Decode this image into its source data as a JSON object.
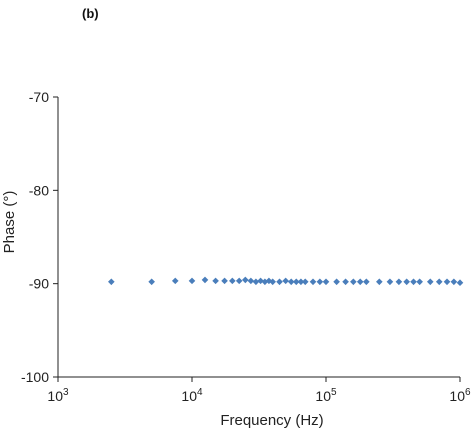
{
  "panel_label": "(b)",
  "chart_data": {
    "type": "scatter",
    "xlabel": "Frequency (Hz)",
    "ylabel": "Phase (°)",
    "xscale": "log",
    "xlim": [
      1000,
      1000000
    ],
    "ylim": [
      -100,
      -70
    ],
    "x_ticks": [
      1000,
      10000,
      100000,
      1000000
    ],
    "x_tick_labels": [
      {
        "base": "10",
        "exp": "3"
      },
      {
        "base": "10",
        "exp": "4"
      },
      {
        "base": "10",
        "exp": "5"
      },
      {
        "base": "10",
        "exp": "6"
      }
    ],
    "y_ticks": [
      -100,
      -90,
      -80,
      -70
    ],
    "y_tick_labels": [
      "-100",
      "-90",
      "-80",
      "-70"
    ],
    "grid": false,
    "marker": "diamond",
    "color": "#4a7ebb",
    "series": [
      {
        "x": [
          2500,
          5000,
          7500,
          10000,
          12500,
          15000,
          17500,
          20000,
          22500,
          25000,
          27500,
          30000,
          32500,
          35000,
          37500,
          40000,
          45000,
          50000,
          55000,
          60000,
          65000,
          70000,
          80000,
          90000,
          100000,
          120000,
          140000,
          160000,
          180000,
          200000,
          250000,
          300000,
          350000,
          400000,
          450000,
          500000,
          600000,
          700000,
          800000,
          900000,
          1000000
        ],
        "y": [
          -89.8,
          -89.8,
          -89.7,
          -89.7,
          -89.6,
          -89.7,
          -89.7,
          -89.7,
          -89.7,
          -89.6,
          -89.7,
          -89.8,
          -89.7,
          -89.8,
          -89.7,
          -89.8,
          -89.8,
          -89.7,
          -89.8,
          -89.8,
          -89.8,
          -89.8,
          -89.8,
          -89.8,
          -89.8,
          -89.8,
          -89.8,
          -89.8,
          -89.8,
          -89.8,
          -89.8,
          -89.8,
          -89.8,
          -89.8,
          -89.8,
          -89.8,
          -89.8,
          -89.8,
          -89.8,
          -89.8,
          -89.9
        ]
      }
    ]
  }
}
